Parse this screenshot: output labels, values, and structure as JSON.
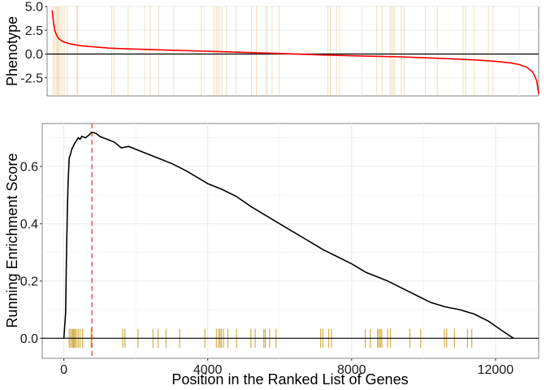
{
  "chart_data": [
    {
      "type": "line",
      "panel": "top",
      "ylabel": "Phenotype",
      "xlim": [
        0,
        12500
      ],
      "ylim": [
        -4.4,
        5.0
      ],
      "y_ticks": [
        {
          "value": 5.0,
          "label": "5.0"
        },
        {
          "value": 2.5,
          "label": "2.5"
        },
        {
          "value": 0.0,
          "label": "0.0"
        },
        {
          "value": -2.5,
          "label": "-2.5"
        }
      ],
      "grid": true,
      "series": [
        {
          "color": "#ff0000",
          "x": [
            130,
            160,
            200,
            250,
            300,
            400,
            600,
            900,
            1200,
            1600,
            2000,
            3000,
            4000,
            5000,
            6000,
            7000,
            8000,
            9000,
            10000,
            10500,
            11000,
            11500,
            11800,
            12000,
            12200,
            12350,
            12450,
            12500
          ],
          "y": [
            4.6,
            3.4,
            2.4,
            1.9,
            1.6,
            1.3,
            1.05,
            0.85,
            0.75,
            0.62,
            0.55,
            0.42,
            0.3,
            0.18,
            0.05,
            -0.1,
            -0.2,
            -0.3,
            -0.45,
            -0.55,
            -0.65,
            -0.8,
            -0.95,
            -1.1,
            -1.4,
            -1.9,
            -2.8,
            -4.2
          ]
        }
      ],
      "hit_color": "#e3c483"
    },
    {
      "type": "line",
      "panel": "bottom",
      "xlabel": "Position in the Ranked List of Genes",
      "ylabel": "Running Enrichment Score",
      "xlim": [
        -600,
        13200
      ],
      "ylim": [
        -0.07,
        0.75
      ],
      "x_ticks": [
        {
          "value": 0,
          "label": "0"
        },
        {
          "value": 4000,
          "label": "4000"
        },
        {
          "value": 8000,
          "label": "8000"
        },
        {
          "value": 12000,
          "label": "12000"
        }
      ],
      "y_ticks": [
        {
          "value": 0.0,
          "label": "0.0"
        },
        {
          "value": 0.2,
          "label": "0.2"
        },
        {
          "value": 0.4,
          "label": "0.4"
        },
        {
          "value": 0.6,
          "label": "0.6"
        }
      ],
      "grid": true,
      "peak_position": 780,
      "peak_color": "#ff3333",
      "hit_color": "#d4ad45",
      "series": [
        {
          "color": "#000000",
          "x": [
            0,
            50,
            70,
            100,
            120,
            150,
            180,
            220,
            260,
            300,
            350,
            400,
            450,
            500,
            600,
            700,
            780,
            900,
            1000,
            1200,
            1400,
            1600,
            1800,
            2000,
            2300,
            2600,
            3000,
            3400,
            3800,
            4000,
            4400,
            4800,
            5200,
            5600,
            6000,
            6400,
            6800,
            7200,
            7600,
            8000,
            8400,
            8800,
            9000,
            9400,
            9800,
            10200,
            10600,
            11000,
            11400,
            11800,
            12200,
            12500
          ],
          "y": [
            0.0,
            0.09,
            0.27,
            0.46,
            0.55,
            0.63,
            0.64,
            0.66,
            0.67,
            0.68,
            0.69,
            0.7,
            0.695,
            0.705,
            0.7,
            0.71,
            0.72,
            0.715,
            0.705,
            0.695,
            0.685,
            0.665,
            0.67,
            0.66,
            0.645,
            0.63,
            0.61,
            0.585,
            0.555,
            0.54,
            0.52,
            0.495,
            0.46,
            0.43,
            0.4,
            0.37,
            0.34,
            0.31,
            0.285,
            0.26,
            0.23,
            0.21,
            0.2,
            0.175,
            0.15,
            0.125,
            0.11,
            0.1,
            0.085,
            0.06,
            0.025,
            0.0
          ]
        }
      ]
    }
  ],
  "hits": [
    150,
    190,
    230,
    260,
    280,
    310,
    350,
    400,
    450,
    520,
    760,
    780,
    1640,
    1700,
    2060,
    2480,
    2620,
    2840,
    3220,
    3920,
    4240,
    4300,
    4340,
    4380,
    4440,
    4560,
    4800,
    5200,
    5320,
    5560,
    5600,
    5720,
    5900,
    7140,
    7200,
    7360,
    7440,
    8380,
    8520,
    8720,
    8760,
    8800,
    8840,
    9000,
    9080,
    9620,
    9920,
    10580,
    10640,
    10860,
    11220,
    11340
  ]
}
